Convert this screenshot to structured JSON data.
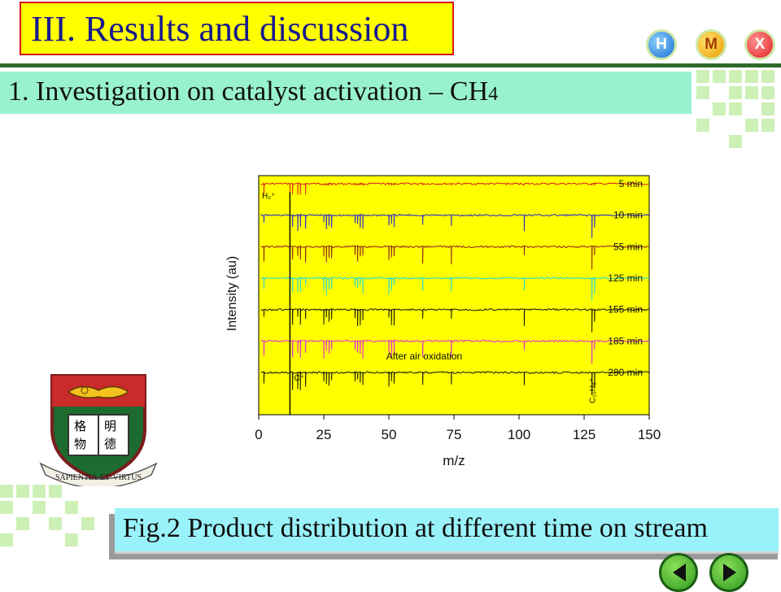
{
  "slide": {
    "title": "III. Results and discussion",
    "section": {
      "text": "1. Investigation  on catalyst activation – CH",
      "subscript": "4"
    },
    "caption": "Fig.2  Product distribution  at different  time on stream",
    "nav_buttons": [
      {
        "label": "H",
        "icon": "home-button-icon"
      },
      {
        "label": "M",
        "icon": "menu-button-icon"
      },
      {
        "label": "X",
        "icon": "exit-button-icon"
      }
    ],
    "crest": {
      "motto": "SAPIENTIA·ET·VIRTUS",
      "chars": [
        "格",
        "明",
        "物",
        "德"
      ]
    },
    "colors": {
      "title_bg": "#ffff00",
      "title_border": "#d81818",
      "title_text": "#1a1a8e",
      "section_bg": "#99f2cf",
      "caption_bg": "#99f2f9",
      "deco": "#cdf0b6",
      "plot_bg": "#ffff00"
    }
  },
  "chart_data": {
    "type": "line",
    "xlabel": "m/z",
    "ylabel": "Intensity (au)",
    "xlim": [
      0,
      150
    ],
    "xticks": [
      0,
      25,
      50,
      75,
      100,
      125,
      150
    ],
    "series": [
      {
        "name": "5 min",
        "color": "#d42020"
      },
      {
        "name": "10 min",
        "color": "#1f1fd6"
      },
      {
        "name": "55 min",
        "color": "#8b1a1a"
      },
      {
        "name": "125 min",
        "color": "#22d8d8"
      },
      {
        "name": "155 min",
        "color": "#111111"
      },
      {
        "name": "185 min",
        "color": "#e020e0"
      },
      {
        "name": "290 min",
        "color": "#111111"
      }
    ],
    "peaks_mz": [
      2,
      12,
      13,
      15,
      16,
      18,
      25,
      26,
      27,
      28,
      37,
      38,
      39,
      40,
      50,
      51,
      52,
      63,
      74,
      102,
      128,
      129
    ],
    "annotations": {
      "h2": "H₂⁺",
      "c": "C⁺",
      "naphthalene": "C₁₀H₈⁺",
      "air": "After air oxidation"
    }
  }
}
